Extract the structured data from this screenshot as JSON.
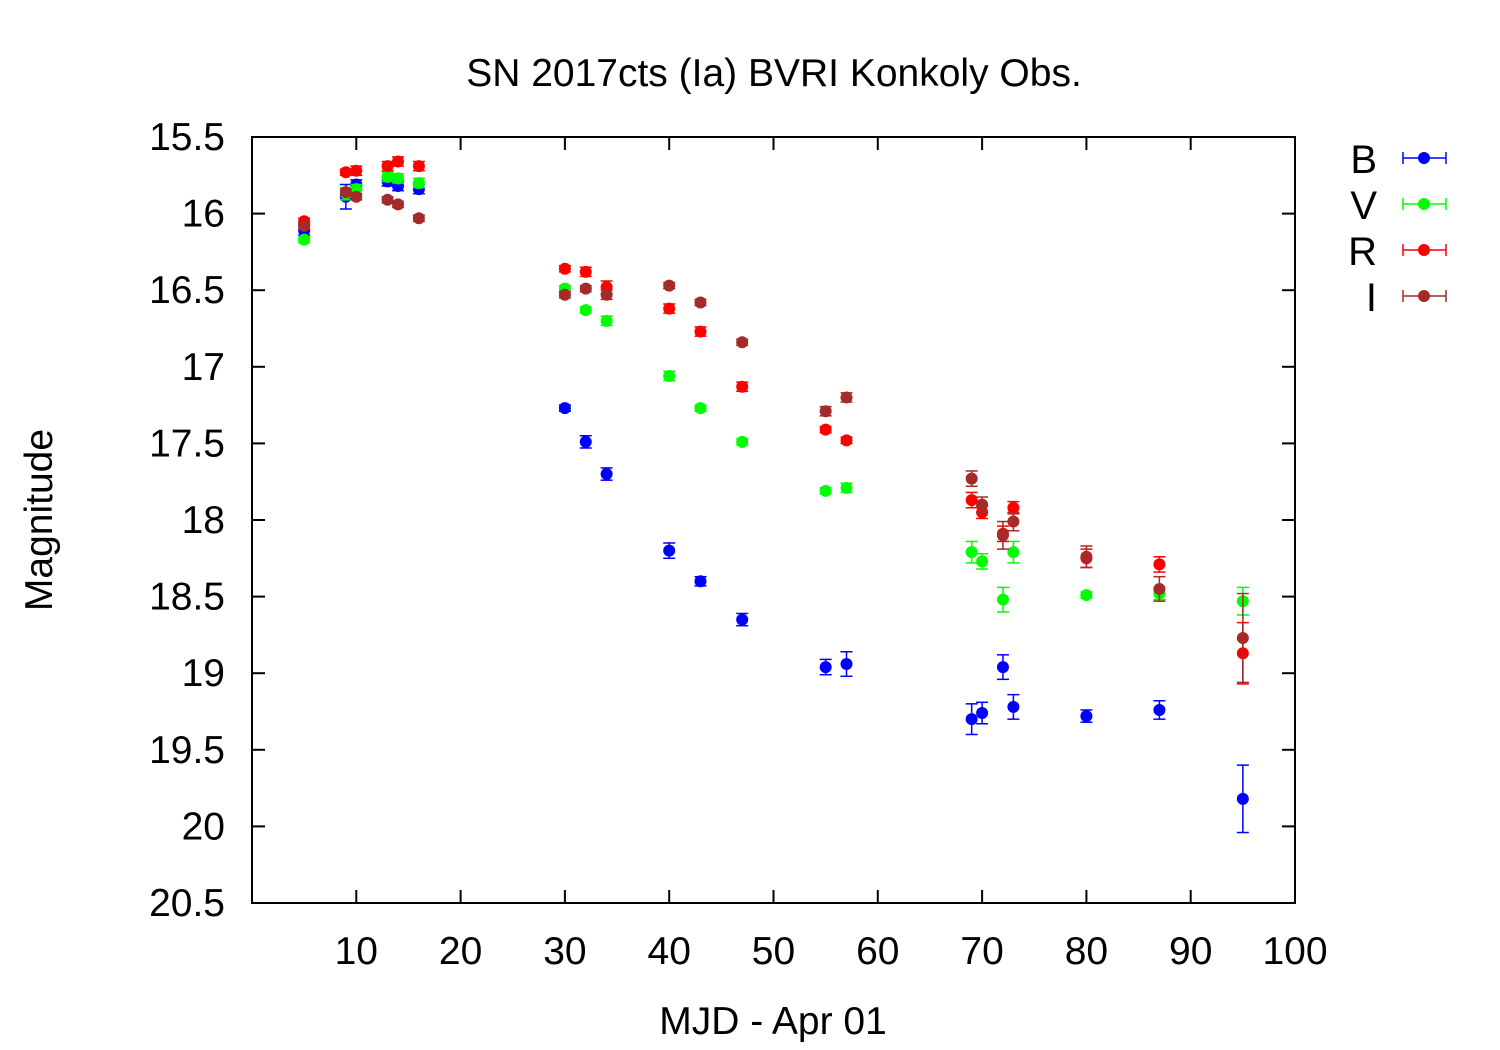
{
  "chart_data": {
    "type": "scatter",
    "title": "SN 2017cts (Ia) BVRI Konkoly Obs.",
    "xlabel": "MJD - Apr 01",
    "ylabel": "Magnitude",
    "xlim": [
      0,
      100
    ],
    "ylim": [
      15.5,
      20.5
    ],
    "y_inverted": true,
    "x_ticks": [
      10,
      20,
      30,
      40,
      50,
      60,
      70,
      80,
      90,
      100
    ],
    "y_ticks": [
      15.5,
      16,
      16.5,
      17,
      17.5,
      18,
      18.5,
      19,
      19.5,
      20,
      20.5
    ],
    "x_tick_labels": [
      "10",
      "20",
      "30",
      "40",
      "50",
      "60",
      "70",
      "80",
      "90",
      "100"
    ],
    "y_tick_labels": [
      "15.5",
      "16",
      "16.5",
      "17",
      "17.5",
      "18",
      "18.5",
      "19",
      "19.5",
      "20",
      "20.5"
    ],
    "grid": false,
    "legend_position": "outside-right-top",
    "series": [
      {
        "name": "B",
        "color": "#0000ff",
        "points": [
          {
            "x": 5,
            "y": 16.11,
            "err": 0.03
          },
          {
            "x": 9,
            "y": 15.89,
            "err": 0.08
          },
          {
            "x": 10,
            "y": 15.81,
            "err": 0.03
          },
          {
            "x": 13,
            "y": 15.79,
            "err": 0.03
          },
          {
            "x": 14,
            "y": 15.82,
            "err": 0.03
          },
          {
            "x": 16,
            "y": 15.84,
            "err": 0.03
          },
          {
            "x": 30,
            "y": 17.27,
            "err": 0.02
          },
          {
            "x": 32,
            "y": 17.49,
            "err": 0.04
          },
          {
            "x": 34,
            "y": 17.7,
            "err": 0.04
          },
          {
            "x": 40,
            "y": 18.2,
            "err": 0.05
          },
          {
            "x": 43,
            "y": 18.4,
            "err": 0.03
          },
          {
            "x": 47,
            "y": 18.65,
            "err": 0.04
          },
          {
            "x": 55,
            "y": 18.96,
            "err": 0.05
          },
          {
            "x": 57,
            "y": 18.94,
            "err": 0.08
          },
          {
            "x": 69,
            "y": 19.3,
            "err": 0.1
          },
          {
            "x": 70,
            "y": 19.26,
            "err": 0.07
          },
          {
            "x": 72,
            "y": 18.96,
            "err": 0.08
          },
          {
            "x": 73,
            "y": 19.22,
            "err": 0.08
          },
          {
            "x": 80,
            "y": 19.28,
            "err": 0.04
          },
          {
            "x": 87,
            "y": 19.24,
            "err": 0.06
          },
          {
            "x": 95,
            "y": 19.82,
            "err": 0.22
          }
        ]
      },
      {
        "name": "V",
        "color": "#00ff00",
        "points": [
          {
            "x": 5,
            "y": 16.17,
            "err": 0.02
          },
          {
            "x": 9,
            "y": 15.87,
            "err": 0.04
          },
          {
            "x": 10,
            "y": 15.84,
            "err": 0.03
          },
          {
            "x": 13,
            "y": 15.76,
            "err": 0.03
          },
          {
            "x": 14,
            "y": 15.77,
            "err": 0.03
          },
          {
            "x": 16,
            "y": 15.8,
            "err": 0.03
          },
          {
            "x": 30,
            "y": 16.49,
            "err": 0.02
          },
          {
            "x": 32,
            "y": 16.63,
            "err": 0.02
          },
          {
            "x": 34,
            "y": 16.7,
            "err": 0.03
          },
          {
            "x": 40,
            "y": 17.06,
            "err": 0.03
          },
          {
            "x": 43,
            "y": 17.27,
            "err": 0.02
          },
          {
            "x": 47,
            "y": 17.49,
            "err": 0.02
          },
          {
            "x": 55,
            "y": 17.81,
            "err": 0.02
          },
          {
            "x": 57,
            "y": 17.79,
            "err": 0.03
          },
          {
            "x": 69,
            "y": 18.21,
            "err": 0.07
          },
          {
            "x": 70,
            "y": 18.27,
            "err": 0.05
          },
          {
            "x": 72,
            "y": 18.52,
            "err": 0.08
          },
          {
            "x": 73,
            "y": 18.21,
            "err": 0.07
          },
          {
            "x": 80,
            "y": 18.49,
            "err": 0.02
          },
          {
            "x": 87,
            "y": 18.48,
            "err": 0.04
          },
          {
            "x": 95,
            "y": 18.53,
            "err": 0.09
          }
        ]
      },
      {
        "name": "R",
        "color": "#ff0000",
        "points": [
          {
            "x": 5,
            "y": 16.05,
            "err": 0.02
          },
          {
            "x": 9,
            "y": 15.73,
            "err": 0.02
          },
          {
            "x": 10,
            "y": 15.72,
            "err": 0.03
          },
          {
            "x": 13,
            "y": 15.69,
            "err": 0.03
          },
          {
            "x": 14,
            "y": 15.66,
            "err": 0.03
          },
          {
            "x": 16,
            "y": 15.69,
            "err": 0.03
          },
          {
            "x": 30,
            "y": 16.36,
            "err": 0.02
          },
          {
            "x": 32,
            "y": 16.38,
            "err": 0.03
          },
          {
            "x": 34,
            "y": 16.48,
            "err": 0.04
          },
          {
            "x": 40,
            "y": 16.62,
            "err": 0.03
          },
          {
            "x": 43,
            "y": 16.77,
            "err": 0.03
          },
          {
            "x": 47,
            "y": 17.13,
            "err": 0.03
          },
          {
            "x": 55,
            "y": 17.41,
            "err": 0.02
          },
          {
            "x": 57,
            "y": 17.48,
            "err": 0.02
          },
          {
            "x": 69,
            "y": 17.87,
            "err": 0.05
          },
          {
            "x": 70,
            "y": 17.95,
            "err": 0.04
          },
          {
            "x": 72,
            "y": 18.09,
            "err": 0.05
          },
          {
            "x": 73,
            "y": 17.92,
            "err": 0.04
          },
          {
            "x": 80,
            "y": 18.25,
            "err": 0.06
          },
          {
            "x": 87,
            "y": 18.29,
            "err": 0.05
          },
          {
            "x": 95,
            "y": 18.87,
            "err": 0.2
          }
        ]
      },
      {
        "name": "I",
        "color": "#a52a2a",
        "points": [
          {
            "x": 5,
            "y": 16.08,
            "err": 0.02
          },
          {
            "x": 9,
            "y": 15.86,
            "err": 0.02
          },
          {
            "x": 10,
            "y": 15.89,
            "err": 0.02
          },
          {
            "x": 13,
            "y": 15.91,
            "err": 0.02
          },
          {
            "x": 14,
            "y": 15.94,
            "err": 0.02
          },
          {
            "x": 16,
            "y": 16.03,
            "err": 0.02
          },
          {
            "x": 30,
            "y": 16.53,
            "err": 0.02
          },
          {
            "x": 32,
            "y": 16.49,
            "err": 0.02
          },
          {
            "x": 34,
            "y": 16.53,
            "err": 0.03
          },
          {
            "x": 40,
            "y": 16.47,
            "err": 0.02
          },
          {
            "x": 43,
            "y": 16.58,
            "err": 0.02
          },
          {
            "x": 47,
            "y": 16.84,
            "err": 0.02
          },
          {
            "x": 55,
            "y": 17.29,
            "err": 0.03
          },
          {
            "x": 57,
            "y": 17.2,
            "err": 0.03
          },
          {
            "x": 69,
            "y": 17.73,
            "err": 0.05
          },
          {
            "x": 70,
            "y": 17.9,
            "err": 0.05
          },
          {
            "x": 72,
            "y": 18.1,
            "err": 0.09
          },
          {
            "x": 73,
            "y": 18.01,
            "err": 0.06
          },
          {
            "x": 80,
            "y": 18.24,
            "err": 0.07
          },
          {
            "x": 87,
            "y": 18.45,
            "err": 0.08
          },
          {
            "x": 95,
            "y": 18.77,
            "err": 0.29
          }
        ]
      }
    ]
  }
}
